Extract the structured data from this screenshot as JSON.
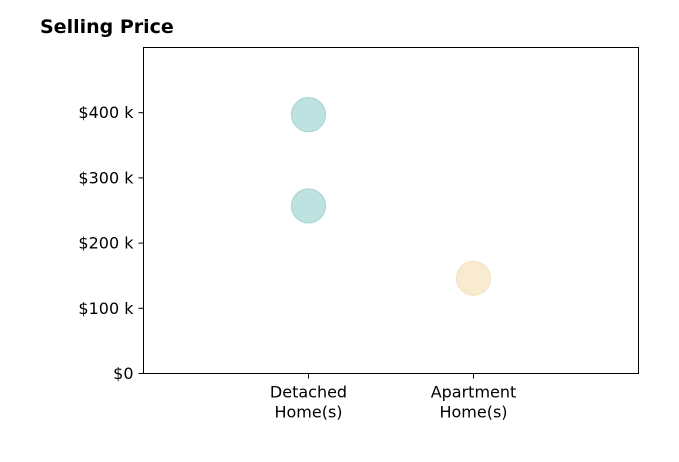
{
  "chart_data": {
    "type": "scatter",
    "title": "Selling Price",
    "xlabel": "",
    "ylabel": "",
    "categories": [
      [
        "Detached",
        "Home(s)"
      ],
      [
        "Apartment",
        "Home(s)"
      ]
    ],
    "x_range": [
      -1,
      2
    ],
    "ylim": [
      0,
      500000
    ],
    "yticks": [
      0,
      100000,
      200000,
      300000,
      400000
    ],
    "ytick_labels": [
      "$0",
      "$100 k",
      "$200 k",
      "$300 k",
      "$400 k"
    ],
    "grid": false,
    "points": [
      {
        "category_index": 0,
        "y": 397000,
        "color": "#a8d8d4"
      },
      {
        "category_index": 0,
        "y": 257000,
        "color": "#a8d8d4"
      },
      {
        "category_index": 1,
        "y": 146000,
        "color": "#f5e4c0"
      }
    ]
  }
}
